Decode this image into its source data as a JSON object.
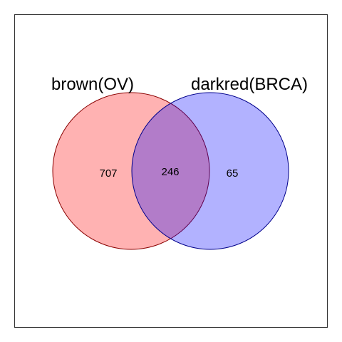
{
  "venn": {
    "sets": [
      {
        "label": "brown(OV)",
        "fill": "#ff0000",
        "stroke": "#8b0000"
      },
      {
        "label": "darkred(BRCA)",
        "fill": "#0000ff",
        "stroke": "#00008b"
      }
    ],
    "counts": {
      "only_left": "707",
      "intersection": "246",
      "only_right": "65"
    },
    "fill_opacity": 0.3
  }
}
